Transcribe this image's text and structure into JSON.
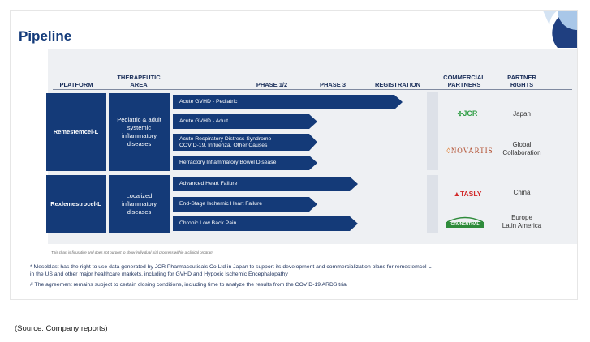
{
  "title": "Pipeline",
  "headers": {
    "platform": "PLATFORM",
    "therapeutic_area": "THERAPEUTIC AREA",
    "phase12": "PHASE 1/2",
    "phase3": "PHASE 3",
    "registration": "REGISTRATION",
    "commercial_partners": "COMMERCIAL PARTNERS",
    "partner_rights": "PARTNER RIGHTS"
  },
  "platforms": [
    {
      "name": "Remestemcel-L",
      "area": "Pediatric & adult systemic inflammatory diseases",
      "programs": [
        {
          "label": "Acute GVHD - Pediatric",
          "progress": "registration"
        },
        {
          "label": "Acute GVHD - Adult",
          "progress": "phase 1/2"
        },
        {
          "label_line1": "Acute Respiratory Distress Syndrome",
          "label_line2": "COVID-19, Influenza, Other Causes",
          "progress": "phase 1/2"
        },
        {
          "label": "Refractory Inflammatory Bowel Disease",
          "progress": "phase 1/2"
        }
      ]
    },
    {
      "name": "Rexlemestrocel-L",
      "area": "Localized inflammatory diseases",
      "programs": [
        {
          "label": "Advanced Heart Failure",
          "progress": "phase 3"
        },
        {
          "label": "End-Stage Ischemic Heart Failure",
          "progress": "phase 1/2"
        },
        {
          "label": "Chronic Low Back Pain",
          "progress": "phase 3"
        }
      ]
    }
  ],
  "partners": [
    {
      "name": "JCR",
      "rights": "Japan"
    },
    {
      "name": "NOVARTIS",
      "rights_line1": "Global",
      "rights_line2": "Collaboration"
    },
    {
      "name": "TASLY",
      "rights": "China"
    },
    {
      "name": "GRÜNENTHAL",
      "rights_line1": "Europe",
      "rights_line2": "Latin America"
    }
  ],
  "disclaimer": "This chart is figurative and does not purport to show individual trial progress within a clinical program",
  "footnotes": [
    {
      "line1": "* Mesoblast has the right to use data generated by JCR Pharmaceuticals Co Ltd in Japan to support its development and commercialization plans for remestemcel-L",
      "line2": "in the US and other major healthcare markets, including for GVHD and Hypoxic Ischemic Encephalopathy"
    },
    {
      "line1": "# The agreement remains subject to certain closing conditions, including time to analyze the results from the COVID-19 ARDS trial"
    }
  ],
  "source": "(Source: Company reports)",
  "colors": {
    "navy": "#143a78",
    "panel": "#eef0f3",
    "title": "#123a7a"
  }
}
